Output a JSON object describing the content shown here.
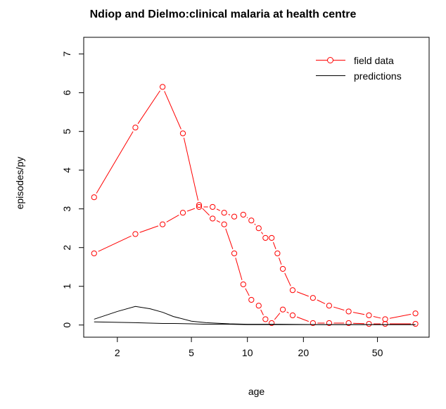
{
  "chart_data": {
    "type": "line",
    "title": "Ndiop and Dielmo:clinical malaria at health centre",
    "xlabel": "age",
    "ylabel": "episodes/py",
    "x_scale": "log",
    "x_ticks": [
      2,
      5,
      10,
      20,
      50
    ],
    "x_range": [
      1.32,
      95
    ],
    "y_ticks": [
      0,
      1,
      2,
      3,
      4,
      5,
      6,
      7
    ],
    "y_range": [
      -0.28,
      7.3
    ],
    "grid": false,
    "legend": {
      "position": "top-right",
      "items": [
        {
          "label": "field data",
          "color": "#ff0000",
          "marker": "circle",
          "line": true
        },
        {
          "label": "predictions",
          "color": "#000000",
          "marker": null,
          "line": true
        }
      ]
    },
    "series": [
      {
        "name": "Dielmo field data",
        "legend": "field data",
        "color": "#ff0000",
        "marker": "circle",
        "style": "points-with-segments",
        "x": [
          1.5,
          2.5,
          3.5,
          4.5,
          5.5,
          6.5,
          7.5,
          8.5,
          9.5,
          10.5,
          11.5,
          12.5,
          13.5,
          15.5,
          17.5,
          22.5,
          27.5,
          35,
          45,
          55,
          80
        ],
        "y": [
          3.3,
          5.1,
          6.15,
          4.95,
          3.1,
          2.75,
          2.6,
          1.85,
          1.05,
          0.65,
          0.5,
          0.15,
          0.05,
          0.4,
          0.25,
          0.05,
          0.05,
          0.05,
          0.03,
          0.03,
          0.03
        ]
      },
      {
        "name": "Ndiop field data",
        "legend": "field data",
        "color": "#ff0000",
        "marker": "circle",
        "style": "points-with-segments",
        "x": [
          1.5,
          2.5,
          3.5,
          4.5,
          5.5,
          6.5,
          7.5,
          8.5,
          9.5,
          10.5,
          11.5,
          12.5,
          13.5,
          14.5,
          15.5,
          17.5,
          22.5,
          27.5,
          35,
          45,
          55,
          80
        ],
        "y": [
          1.85,
          2.35,
          2.6,
          2.9,
          3.05,
          3.05,
          2.9,
          2.8,
          2.85,
          2.7,
          2.5,
          2.25,
          2.25,
          1.85,
          1.45,
          0.9,
          0.7,
          0.5,
          0.35,
          0.25,
          0.15,
          0.3
        ]
      },
      {
        "name": "Dielmo predictions",
        "legend": "predictions",
        "color": "#000000",
        "style": "line",
        "x": [
          1.5,
          2,
          2.5,
          3,
          3.5,
          4,
          5,
          6,
          8,
          10,
          15,
          25,
          50,
          80
        ],
        "y": [
          0.15,
          0.35,
          0.48,
          0.42,
          0.33,
          0.22,
          0.1,
          0.06,
          0.03,
          0.02,
          0.02,
          0.01,
          0.01,
          0.01
        ]
      },
      {
        "name": "Ndiop predictions",
        "legend": "predictions",
        "color": "#000000",
        "style": "line",
        "x": [
          1.5,
          2,
          2.5,
          3,
          3.5,
          4,
          5,
          6,
          8,
          10,
          15,
          25,
          50,
          80
        ],
        "y": [
          0.08,
          0.07,
          0.06,
          0.05,
          0.04,
          0.04,
          0.03,
          0.02,
          0.02,
          0.01,
          0.01,
          0.01,
          0.01,
          0.01
        ]
      }
    ]
  }
}
